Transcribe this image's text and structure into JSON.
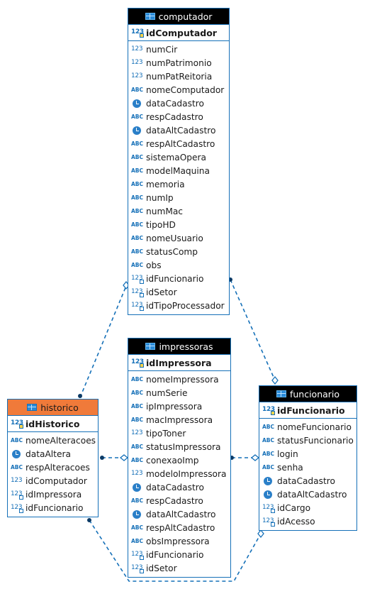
{
  "colors": {
    "border": "#1570b8",
    "header_bg": "#000000",
    "highlight_header_bg": "#f07a3a",
    "edge": "#1570b8"
  },
  "tables": {
    "computador": {
      "title": "computador",
      "pk": {
        "name": "idComputador",
        "type": "num-key"
      },
      "columns": [
        {
          "name": "numCir",
          "type": "num"
        },
        {
          "name": "numPatrimonio",
          "type": "num"
        },
        {
          "name": "numPatReitoria",
          "type": "num"
        },
        {
          "name": "nomeComputador",
          "type": "abc"
        },
        {
          "name": "dataCadastro",
          "type": "clock"
        },
        {
          "name": "respCadastro",
          "type": "abc"
        },
        {
          "name": "dataAltCadastro",
          "type": "clock"
        },
        {
          "name": "respAltCadastro",
          "type": "abc"
        },
        {
          "name": "sistemaOpera",
          "type": "abc"
        },
        {
          "name": "modelMaquina",
          "type": "abc"
        },
        {
          "name": "memoria",
          "type": "abc"
        },
        {
          "name": "numIp",
          "type": "abc"
        },
        {
          "name": "numMac",
          "type": "abc"
        },
        {
          "name": "tipoHD",
          "type": "abc"
        },
        {
          "name": "nomeUsuario",
          "type": "abc"
        },
        {
          "name": "statusComp",
          "type": "abc"
        },
        {
          "name": "obs",
          "type": "abc"
        },
        {
          "name": "idFuncionario",
          "type": "num-fk"
        },
        {
          "name": "idSetor",
          "type": "num-fk"
        },
        {
          "name": "idTipoProcessador",
          "type": "num-fk"
        }
      ]
    },
    "impressoras": {
      "title": "impressoras",
      "pk": {
        "name": "idImpressora",
        "type": "num-key"
      },
      "columns": [
        {
          "name": "nomeImpressora",
          "type": "abc"
        },
        {
          "name": "numSerie",
          "type": "abc"
        },
        {
          "name": "ipImpressora",
          "type": "abc"
        },
        {
          "name": "macImpressora",
          "type": "abc"
        },
        {
          "name": "tipoToner",
          "type": "num"
        },
        {
          "name": "statusImpressora",
          "type": "abc"
        },
        {
          "name": "conexaoImp",
          "type": "abc"
        },
        {
          "name": "modeloImpressora",
          "type": "num"
        },
        {
          "name": "dataCadastro",
          "type": "clock"
        },
        {
          "name": "respCadastro",
          "type": "abc"
        },
        {
          "name": "dataAltCadastro",
          "type": "clock"
        },
        {
          "name": "respAltCadastro",
          "type": "abc"
        },
        {
          "name": "obsImpressora",
          "type": "abc"
        },
        {
          "name": "idFuncionario",
          "type": "num-fk"
        },
        {
          "name": "idSetor",
          "type": "num-fk"
        }
      ]
    },
    "historico": {
      "title": "historico",
      "pk": {
        "name": "idHistorico",
        "type": "num-key"
      },
      "columns": [
        {
          "name": "nomeAlteracoes",
          "type": "abc"
        },
        {
          "name": "dataAltera",
          "type": "clock"
        },
        {
          "name": "respAlteracoes",
          "type": "abc"
        },
        {
          "name": "idComputador",
          "type": "num"
        },
        {
          "name": "idImpressora",
          "type": "num-fk"
        },
        {
          "name": "idFuncionario",
          "type": "num-fk"
        }
      ]
    },
    "funcionario": {
      "title": "funcionario",
      "pk": {
        "name": "idFuncionario",
        "type": "num-key"
      },
      "columns": [
        {
          "name": "nomeFuncionario",
          "type": "abc"
        },
        {
          "name": "statusFuncionario",
          "type": "abc"
        },
        {
          "name": "login",
          "type": "abc"
        },
        {
          "name": "senha",
          "type": "abc"
        },
        {
          "name": "dataCadastro",
          "type": "clock"
        },
        {
          "name": "dataAltCadastro",
          "type": "clock"
        },
        {
          "name": "idCargo",
          "type": "num-fk"
        },
        {
          "name": "idAcesso",
          "type": "num-fk"
        }
      ]
    }
  }
}
